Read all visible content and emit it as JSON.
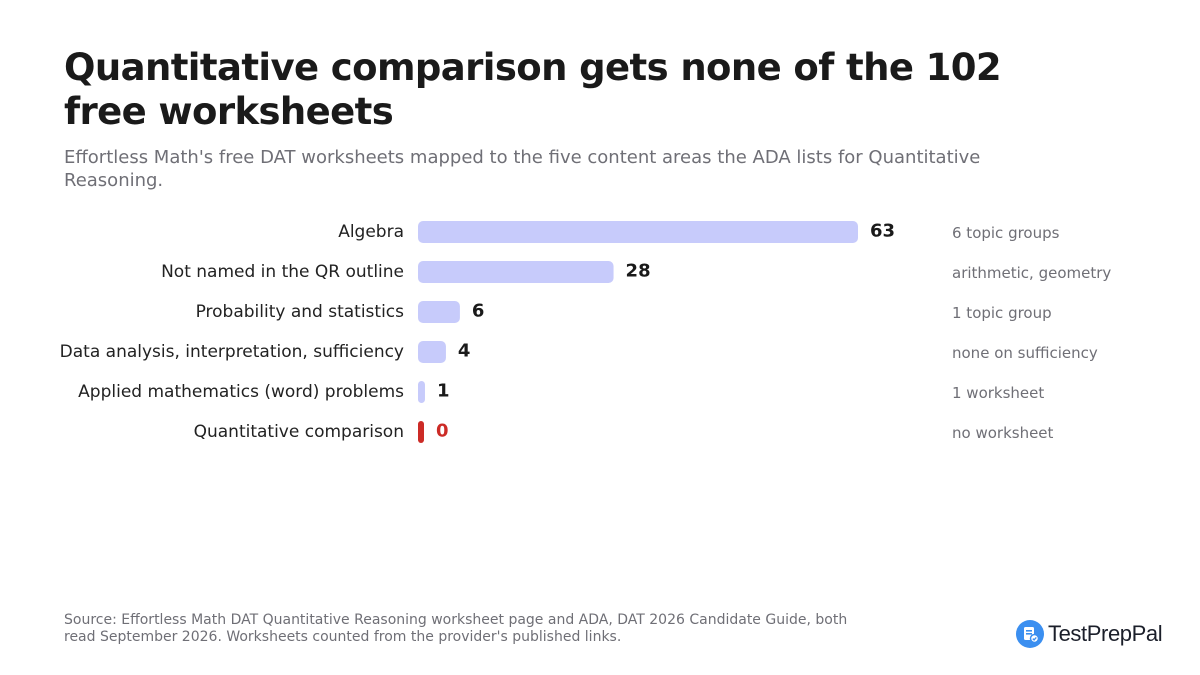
{
  "title": "Quantitative comparison gets none of the 102 free worksheets",
  "subtitle": "Effortless Math's free DAT worksheets mapped to the five content areas the ADA lists for Quantitative Reasoning.",
  "chart_data": {
    "type": "bar",
    "orientation": "horizontal",
    "categories": [
      "Algebra",
      "Not named in the QR outline",
      "Probability and statistics",
      "Data analysis, interpretation, sufficiency",
      "Applied mathematics (word) problems",
      "Quantitative comparison"
    ],
    "values": [
      63,
      28,
      6,
      4,
      1,
      0
    ],
    "notes": [
      "6 topic groups",
      "arithmetic, geometry",
      "1 topic group",
      "none on sufficiency",
      "1 worksheet",
      "no worksheet"
    ],
    "highlight_index": 5,
    "xlim": [
      0,
      63
    ],
    "grid": false,
    "colors": {
      "bar": "#c7cbfb",
      "highlight": "#cc2b26"
    }
  },
  "footer": {
    "source": "Source: Effortless Math DAT Quantitative Reasoning worksheet page and ADA, DAT 2026 Candidate Guide, both read September 2026. Worksheets counted from the provider's published links.",
    "brand": "TestPrepPal"
  }
}
